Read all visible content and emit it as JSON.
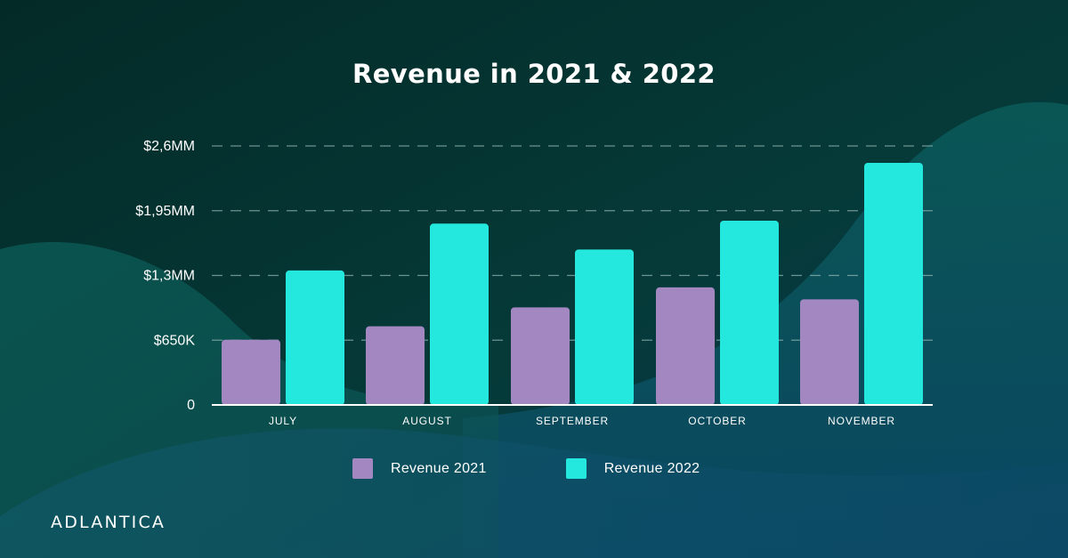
{
  "chart_data": {
    "type": "bar",
    "title": "Revenue in 2021 & 2022",
    "categories": [
      "JULY",
      "AUGUST",
      "SEPTEMBER",
      "OCTOBER",
      "NOVEMBER"
    ],
    "series": [
      {
        "name": "Revenue 2021",
        "color": "#a287c1",
        "values": [
          655000,
          790000,
          980000,
          1180000,
          1060000
        ]
      },
      {
        "name": "Revenue 2022",
        "color": "#24e8dd",
        "values": [
          1350000,
          1820000,
          1560000,
          1850000,
          2430000
        ]
      }
    ],
    "y_ticks": [
      {
        "value": 0,
        "label": "0"
      },
      {
        "value": 650000,
        "label": "$650K"
      },
      {
        "value": 1300000,
        "label": "$1,3MM"
      },
      {
        "value": 1950000,
        "label": "$1,95MM"
      },
      {
        "value": 2600000,
        "label": "$2,6MM"
      }
    ],
    "ylim": [
      0,
      2600000
    ],
    "grid": true,
    "legend_position": "bottom-center"
  },
  "brand": {
    "name": "ADLANTICA"
  }
}
